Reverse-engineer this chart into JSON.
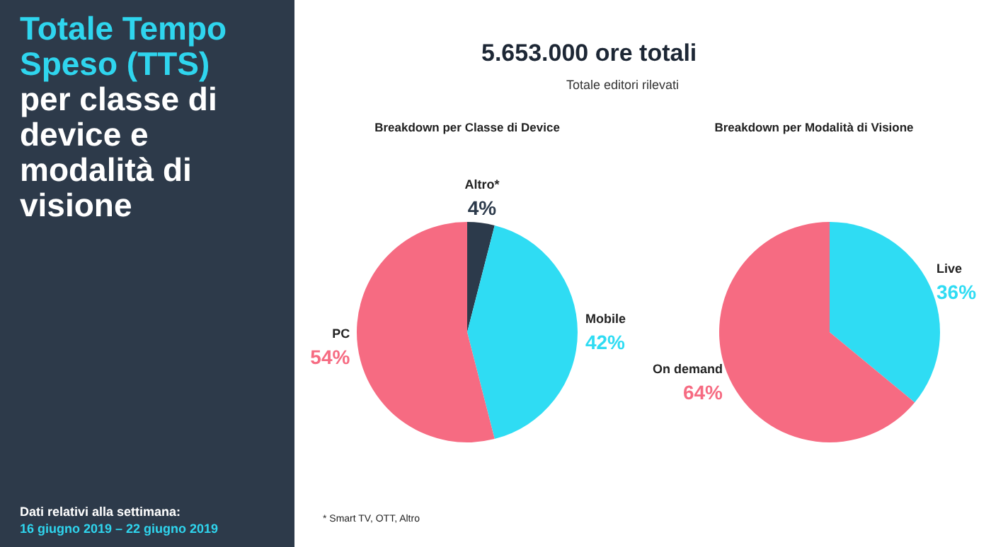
{
  "chart_data": [
    {
      "type": "other",
      "title": "Totale Tempo Speso (TTS)",
      "subtitle": "per classe di device e modalità di visione",
      "annotations": [
        "Dati relativi alla settimana:",
        "16 giugno 2019 – 22 giugno 2019",
        "5.653.000 ore totali",
        "Totale editori rilevati",
        "* Smart TV, OTT, Altro"
      ]
    },
    {
      "type": "pie",
      "title": "Breakdown per Classe di Device",
      "categories": [
        "Altro*",
        "Mobile",
        "PC"
      ],
      "values": [
        4,
        42,
        54
      ],
      "colors": [
        "#2c3a4b",
        "#2fdcf3",
        "#f66b82"
      ],
      "value_labels": [
        "4%",
        "42%",
        "54%"
      ],
      "legend": false
    },
    {
      "type": "pie",
      "title": "Breakdown per Modalità di Visione",
      "categories": [
        "Live",
        "On demand"
      ],
      "values": [
        36,
        64
      ],
      "colors": [
        "#2fdcf3",
        "#f66b82"
      ],
      "value_labels": [
        "36%",
        "64%"
      ],
      "legend": false
    }
  ]
}
